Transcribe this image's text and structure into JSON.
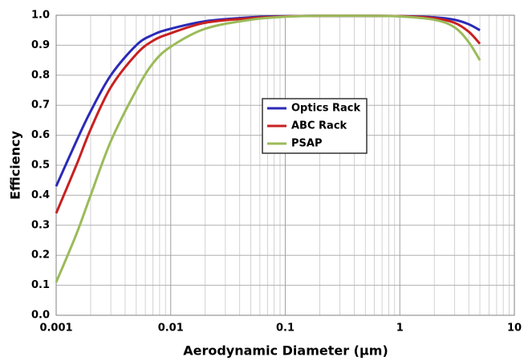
{
  "chart_data": {
    "type": "line",
    "x_label": "Aerodynamic Diameter (μm)",
    "y_label": "Efficiency",
    "x": [
      0.001,
      0.0015,
      0.002,
      0.003,
      0.005,
      0.007,
      0.01,
      0.02,
      0.05,
      0.1,
      0.2,
      0.5,
      1,
      2,
      3,
      4,
      5
    ],
    "series": [
      {
        "name": "Optics Rack",
        "color": "#2a2ab8",
        "values": [
          0.43,
          0.58,
          0.68,
          0.8,
          0.9,
          0.935,
          0.955,
          0.98,
          0.993,
          0.997,
          0.998,
          0.998,
          0.997,
          0.993,
          0.985,
          0.97,
          0.95
        ]
      },
      {
        "name": "ABC Rack",
        "color": "#c82020",
        "values": [
          0.34,
          0.5,
          0.62,
          0.76,
          0.87,
          0.915,
          0.94,
          0.975,
          0.99,
          0.996,
          0.998,
          0.998,
          0.997,
          0.99,
          0.975,
          0.945,
          0.905
        ]
      },
      {
        "name": "PSAP",
        "color": "#9bbb59",
        "values": [
          0.11,
          0.27,
          0.4,
          0.58,
          0.75,
          0.84,
          0.895,
          0.955,
          0.985,
          0.995,
          0.998,
          0.998,
          0.996,
          0.985,
          0.96,
          0.91,
          0.85
        ]
      }
    ],
    "xlog": true,
    "xlim": [
      0.001,
      10
    ],
    "xticks": [
      0.001,
      0.01,
      0.1,
      1,
      10
    ],
    "ylim": [
      0,
      1
    ],
    "yticks": [
      {
        "value": 0,
        "label": "0.0"
      },
      {
        "value": 0.1,
        "label": "0.1"
      },
      {
        "value": 0.2,
        "label": "0.2"
      },
      {
        "value": 0.3,
        "label": "0.3"
      },
      {
        "value": 0.4,
        "label": "0.4"
      },
      {
        "value": 0.5,
        "label": "0.5"
      },
      {
        "value": 0.6,
        "label": "0.6"
      },
      {
        "value": 0.7,
        "label": "0.7"
      },
      {
        "value": 0.8,
        "label": "0.8"
      },
      {
        "value": 0.9,
        "label": "0.9"
      },
      {
        "value": 1,
        "label": "1.0"
      }
    ],
    "grid": true,
    "minor_grid": true,
    "legend": "center"
  }
}
